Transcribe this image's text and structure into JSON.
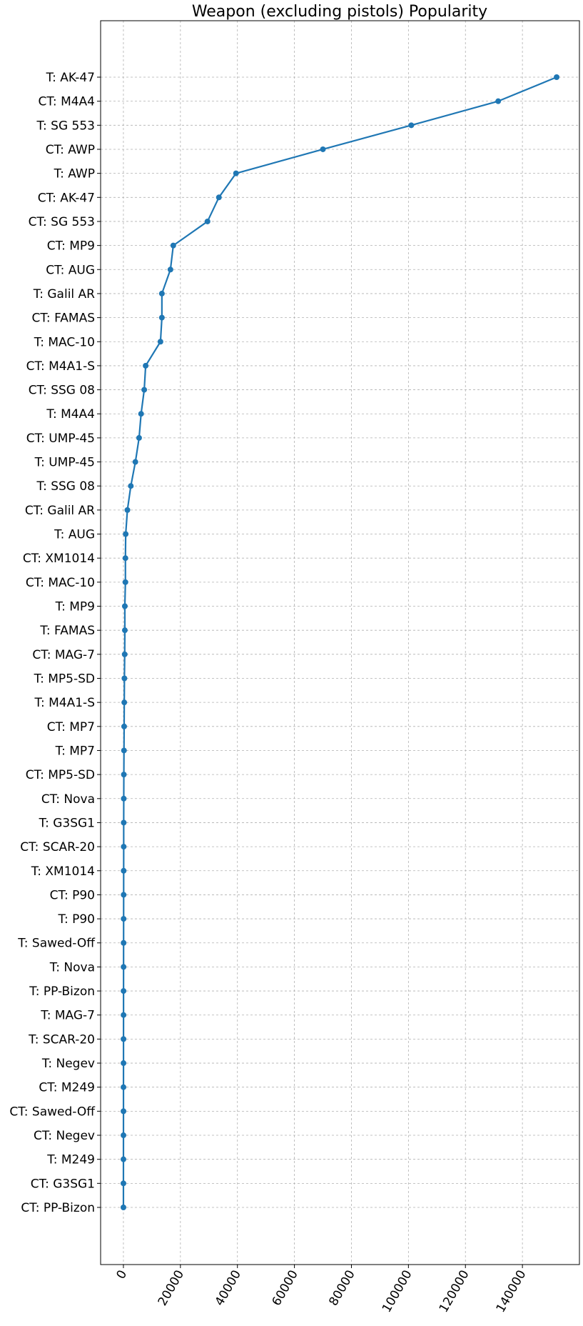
{
  "chart_data": {
    "type": "line",
    "title": "Weapon (excluding pistols) Popularity",
    "xlabel": "",
    "ylabel": "",
    "categories": [
      "T: AK-47",
      "CT: M4A4",
      "T: SG 553",
      "CT: AWP",
      "T: AWP",
      "CT: AK-47",
      "CT: SG 553",
      "CT: MP9",
      "CT: AUG",
      "T: Galil AR",
      "CT: FAMAS",
      "T: MAC-10",
      "CT: M4A1-S",
      "CT: SSG 08",
      "T: M4A4",
      "CT: UMP-45",
      "T: UMP-45",
      "T: SSG 08",
      "CT: Galil AR",
      "T: AUG",
      "CT: XM1014",
      "CT: MAC-10",
      "T: MP9",
      "T: FAMAS",
      "CT: MAG-7",
      "T: MP5-SD",
      "T: M4A1-S",
      "CT: MP7",
      "T: MP7",
      "CT: MP5-SD",
      "CT: Nova",
      "T: G3SG1",
      "CT: SCAR-20",
      "T: XM1014",
      "CT: P90",
      "T: P90",
      "T: Sawed-Off",
      "T: Nova",
      "T: PP-Bizon",
      "T: MAG-7",
      "T: SCAR-20",
      "T: Negev",
      "CT: M249",
      "CT: Sawed-Off",
      "CT: Negev",
      "T: M249",
      "CT: G3SG1",
      "CT: PP-Bizon"
    ],
    "values": [
      152000,
      131500,
      101000,
      70000,
      39500,
      33500,
      29500,
      17500,
      16500,
      13500,
      13500,
      13000,
      7800,
      7300,
      6200,
      5500,
      4200,
      2600,
      1400,
      800,
      700,
      700,
      500,
      500,
      450,
      350,
      300,
      250,
      200,
      150,
      120,
      100,
      100,
      90,
      80,
      70,
      60,
      50,
      40,
      40,
      30,
      30,
      20,
      20,
      15,
      10,
      5,
      5
    ],
    "xlim": [
      -8000,
      160000
    ],
    "xticks": [
      "0",
      "20000",
      "40000",
      "60000",
      "80000",
      "100000",
      "120000",
      "140000"
    ],
    "xtick_values": [
      0,
      20000,
      40000,
      60000,
      80000,
      100000,
      120000,
      140000
    ],
    "grid": true,
    "legend": "none",
    "line_color": "#1f77b4",
    "grid_color": "#b0b0b0"
  }
}
